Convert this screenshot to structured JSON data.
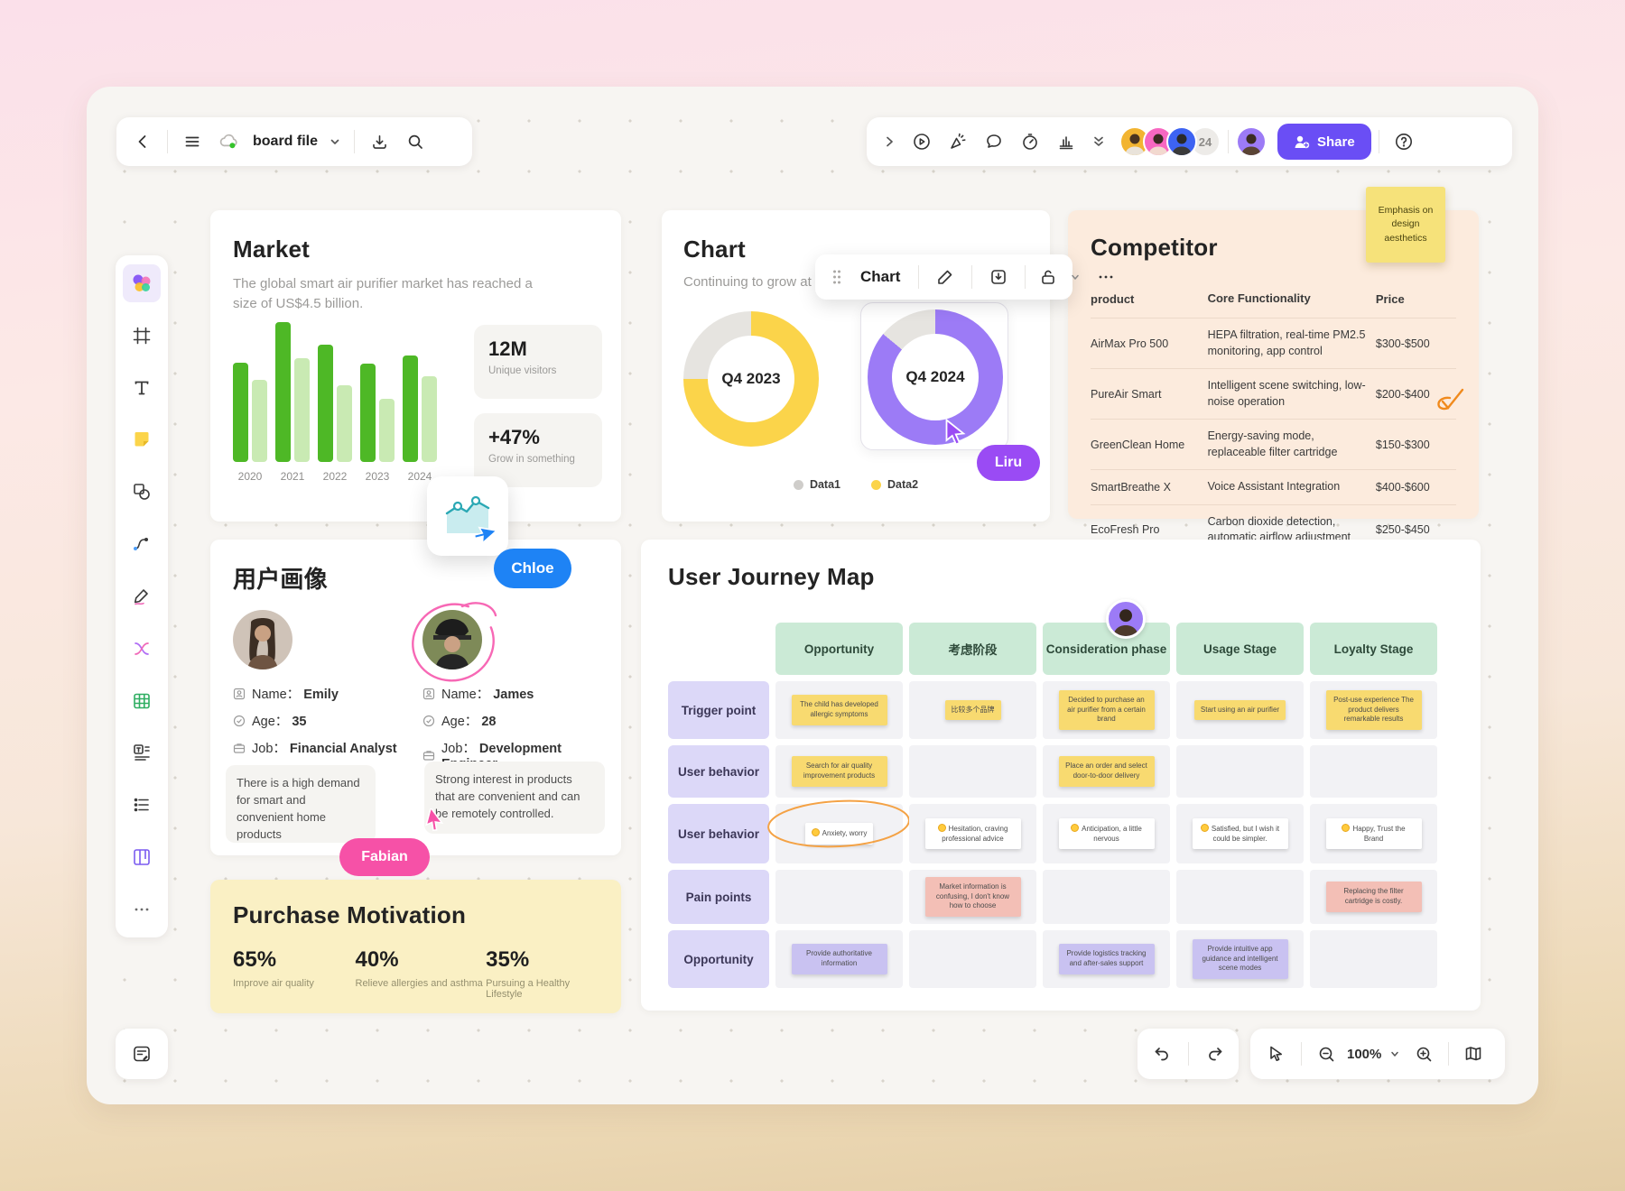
{
  "topbar": {
    "file_name": "board file",
    "collab_count": "24",
    "share_label": "Share",
    "left_icons": [
      "back-chevron-icon",
      "menu-icon",
      "cloud-sync-icon",
      "caret-down-icon",
      "import-icon",
      "search-icon"
    ],
    "right_icons": [
      "collapse-chevron-icon",
      "play-circle-icon",
      "laser-pointer-icon",
      "comment-bubble-icon",
      "timer-icon",
      "presentation-chart-icon",
      "double-chevron-down-icon",
      "help-icon"
    ]
  },
  "sidebar_icons": [
    "templates-icon",
    "frame-icon",
    "text-icon",
    "sticky-note-icon",
    "shapes-icon",
    "connector-icon",
    "pen-icon",
    "mindmap-icon",
    "table-icon",
    "text-block-icon",
    "list-icon",
    "kanban-icon",
    "more-icon"
  ],
  "floating_toolbar": {
    "label": "Chart",
    "icons": [
      "drag-handle-icon",
      "edit-pencil-icon",
      "download-icon",
      "unlock-icon",
      "caret-down-icon",
      "more-icon"
    ]
  },
  "market": {
    "title": "Market",
    "description": "The global smart air purifier market has reached a size of US$4.5 billion.",
    "chart_data": {
      "type": "bar",
      "categories": [
        "2020",
        "2021",
        "2022",
        "2023",
        "2024"
      ],
      "series": [
        {
          "name": "primary",
          "color": "#4eb826",
          "values": [
            71,
            100,
            84,
            70,
            76
          ]
        },
        {
          "name": "secondary",
          "color": "#c9eab3",
          "values": [
            59,
            74,
            55,
            45,
            61
          ]
        }
      ],
      "ylim": [
        0,
        100
      ],
      "grid": "off",
      "legend": "none"
    },
    "stats": [
      {
        "value": "12M",
        "label": "Unique visitors"
      },
      {
        "value": "+47%",
        "label": "Grow in something"
      }
    ]
  },
  "chart_card": {
    "title": "Chart",
    "subtitle": "Continuing to grow at a",
    "chart_data": [
      {
        "type": "pie",
        "label": "Q4 2023",
        "slices": [
          {
            "name": "Data1",
            "value": 25,
            "color": "#e6e4e0"
          },
          {
            "name": "Data2",
            "value": 75,
            "color": "#fbd44a"
          }
        ]
      },
      {
        "type": "pie",
        "label": "Q4 2024",
        "slices": [
          {
            "name": "Data1",
            "value": 14,
            "color": "#e6e4e0"
          },
          {
            "name": "Data2",
            "value": 86,
            "color": "#9c7bf6"
          }
        ]
      }
    ],
    "legend": [
      {
        "label": "Data1",
        "color": "#cfcdca"
      },
      {
        "label": "Data2",
        "color": "#fbd44a"
      }
    ]
  },
  "competitor": {
    "title": "Competitor",
    "sticky_note": "Emphasis on design aesthetics",
    "columns": [
      "product",
      "Core Functionality",
      "Price"
    ],
    "rows": [
      {
        "product": "AirMax Pro 500",
        "functionality": "HEPA filtration, real-time PM2.5 monitoring, app control",
        "price": "$300-$500"
      },
      {
        "product": "PureAir Smart",
        "functionality": "Intelligent scene switching, low-noise operation",
        "price": "$200-$400"
      },
      {
        "product": "GreenClean Home",
        "functionality": "Energy-saving mode, replaceable filter cartridge",
        "price": "$150-$300"
      },
      {
        "product": "SmartBreathe X",
        "functionality": "Voice Assistant Integration",
        "price": "$400-$600"
      },
      {
        "product": "EcoFresh Pro",
        "functionality": "Carbon dioxide detection, automatic airflow adjustment",
        "price": "$250-$450"
      }
    ]
  },
  "persona": {
    "title": "用户画像",
    "profiles": [
      {
        "name_label": "Name：",
        "name": "Emily",
        "age_label": "Age：",
        "age": "35",
        "job_label": "Job：",
        "job": "Financial Analyst"
      },
      {
        "name_label": "Name：",
        "name": "James",
        "age_label": "Age：",
        "age": "28",
        "job_label": "Job：",
        "job": "Development Engineer"
      }
    ],
    "notes": [
      "There is a high demand for smart and convenient home products",
      "Strong interest in products that are convenient and can be remotely controlled."
    ]
  },
  "purchase": {
    "title": "Purchase Motivation",
    "chart_data": {
      "type": "table",
      "values": [
        65,
        40,
        35
      ],
      "labels": [
        "Improve air quality",
        "Relieve allergies and asthma",
        "Pursuing a Healthy Lifestyle"
      ]
    },
    "stats": [
      {
        "value": "65%",
        "label": "Improve air quality"
      },
      {
        "value": "40%",
        "label": "Relieve allergies and asthma"
      },
      {
        "value": "35%",
        "label": "Pursuing a Healthy Lifestyle"
      }
    ]
  },
  "journey": {
    "title": "User Journey Map",
    "columns": [
      "Opportunity",
      "考虑阶段",
      "Consideration phase",
      "Usage Stage",
      "Loyalty Stage"
    ],
    "rows": [
      "Trigger point",
      "User behavior",
      "User behavior",
      "Pain points",
      "Opportunity"
    ],
    "cells": [
      [
        {
          "type": "yellow",
          "text": "The child has developed allergic symptoms"
        },
        {
          "type": "yellow",
          "text": "比较多个品牌"
        },
        {
          "type": "yellow",
          "text": "Decided to purchase an air purifier from a certain brand"
        },
        {
          "type": "yellow",
          "text": "Start using an air purifier"
        },
        {
          "type": "yellow",
          "text": "Post-use experience The product delivers remarkable results"
        }
      ],
      [
        {
          "type": "yellow",
          "text": "Search for air quality improvement products"
        },
        {
          "type": "empty",
          "text": ""
        },
        {
          "type": "yellow",
          "text": "Place an order and select door-to-door delivery"
        },
        {
          "type": "empty",
          "text": ""
        },
        {
          "type": "empty",
          "text": ""
        }
      ],
      [
        {
          "type": "white",
          "icon": "worried-face",
          "text": "Anxiety, worry"
        },
        {
          "type": "white",
          "icon": "hesitant-face",
          "text": "Hesitation, craving professional advice"
        },
        {
          "type": "white",
          "icon": "smile-face",
          "text": "Anticipation, a little nervous"
        },
        {
          "type": "white",
          "icon": "relieved-face",
          "text": "Satisfied, but I wish it could be simpler."
        },
        {
          "type": "white",
          "icon": "smile-face",
          "text": "Happy, Trust the Brand"
        }
      ],
      [
        {
          "type": "empty",
          "text": ""
        },
        {
          "type": "pink",
          "text": "Market information is confusing, I don't know how to choose"
        },
        {
          "type": "empty",
          "text": ""
        },
        {
          "type": "empty",
          "text": ""
        },
        {
          "type": "pink",
          "text": "Replacing the filter cartridge is costly."
        }
      ],
      [
        {
          "type": "purple",
          "text": "Provide authoritative information"
        },
        {
          "type": "empty",
          "text": ""
        },
        {
          "type": "purple",
          "text": "Provide logistics tracking and after-sales support"
        },
        {
          "type": "purple",
          "text": "Provide intuitive app guidance and intelligent scene modes"
        },
        {
          "type": "empty",
          "text": ""
        }
      ]
    ]
  },
  "collaborators": [
    {
      "name": "Chloe",
      "color": "#1e83f5"
    },
    {
      "name": "Fabian",
      "color": "#f651a7"
    },
    {
      "name": "Liru",
      "color": "#9a4bf4"
    }
  ],
  "bottombar": {
    "zoom_level": "100%",
    "icons": [
      "undo-icon",
      "redo-icon",
      "select-cursor-icon",
      "zoom-out-icon",
      "caret-down-icon",
      "zoom-in-icon",
      "minimap-icon",
      "notes-panel-icon"
    ]
  },
  "colors": {
    "share_button": "#6a4ef5",
    "canvas": "#f7f5f2",
    "competitor_bg": "#fcebdd",
    "purchase_bg": "#faf0c4",
    "journey_header": "#cbead6",
    "journey_label": "#dcd8f8",
    "sticky_yellow": "#f8da70",
    "sticky_pink": "#f3bfb6",
    "sticky_purple": "#c9c2f1"
  }
}
